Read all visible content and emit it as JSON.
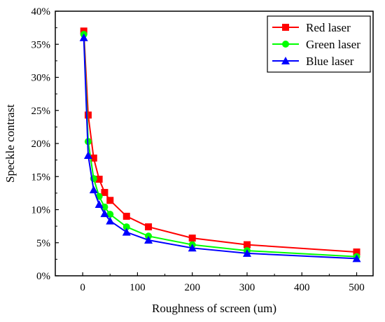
{
  "chart_data": {
    "type": "line",
    "title": "",
    "xlabel": "Roughness of screen (um)",
    "ylabel": "Speckle contrast",
    "xlim": [
      -50,
      530
    ],
    "ylim": [
      0,
      40
    ],
    "x_ticks": [
      {
        "value": 0,
        "label": "0"
      },
      {
        "value": 100,
        "label": "100"
      },
      {
        "value": 200,
        "label": "200"
      },
      {
        "value": 300,
        "label": "300"
      },
      {
        "value": 400,
        "label": "400"
      },
      {
        "value": 500,
        "label": "500"
      }
    ],
    "y_ticks": [
      {
        "value": 0,
        "label": "0%"
      },
      {
        "value": 5,
        "label": "5%"
      },
      {
        "value": 10,
        "label": "10%"
      },
      {
        "value": 15,
        "label": "15%"
      },
      {
        "value": 20,
        "label": "20%"
      },
      {
        "value": 25,
        "label": "25%"
      },
      {
        "value": 30,
        "label": "30%"
      },
      {
        "value": 35,
        "label": "35%"
      },
      {
        "value": 40,
        "label": "40%"
      }
    ],
    "grid": false,
    "legend_position": "top-right",
    "x": [
      2,
      10,
      20,
      30,
      40,
      50,
      80,
      120,
      200,
      300,
      500
    ],
    "series": [
      {
        "name": "Red laser",
        "color": "#ff0000",
        "marker": "square",
        "values": [
          37.0,
          24.3,
          17.8,
          14.6,
          12.6,
          11.4,
          9.0,
          7.4,
          5.7,
          4.7,
          3.6
        ]
      },
      {
        "name": "Green laser",
        "color": "#00ff00",
        "marker": "circle",
        "values": [
          36.5,
          20.3,
          14.7,
          12.0,
          10.4,
          9.3,
          7.4,
          6.0,
          4.7,
          3.8,
          2.9
        ]
      },
      {
        "name": "Blue laser",
        "color": "#0000ff",
        "marker": "triangle",
        "values": [
          36.0,
          18.2,
          13.0,
          10.8,
          9.4,
          8.3,
          6.6,
          5.4,
          4.2,
          3.4,
          2.6
        ]
      }
    ]
  }
}
